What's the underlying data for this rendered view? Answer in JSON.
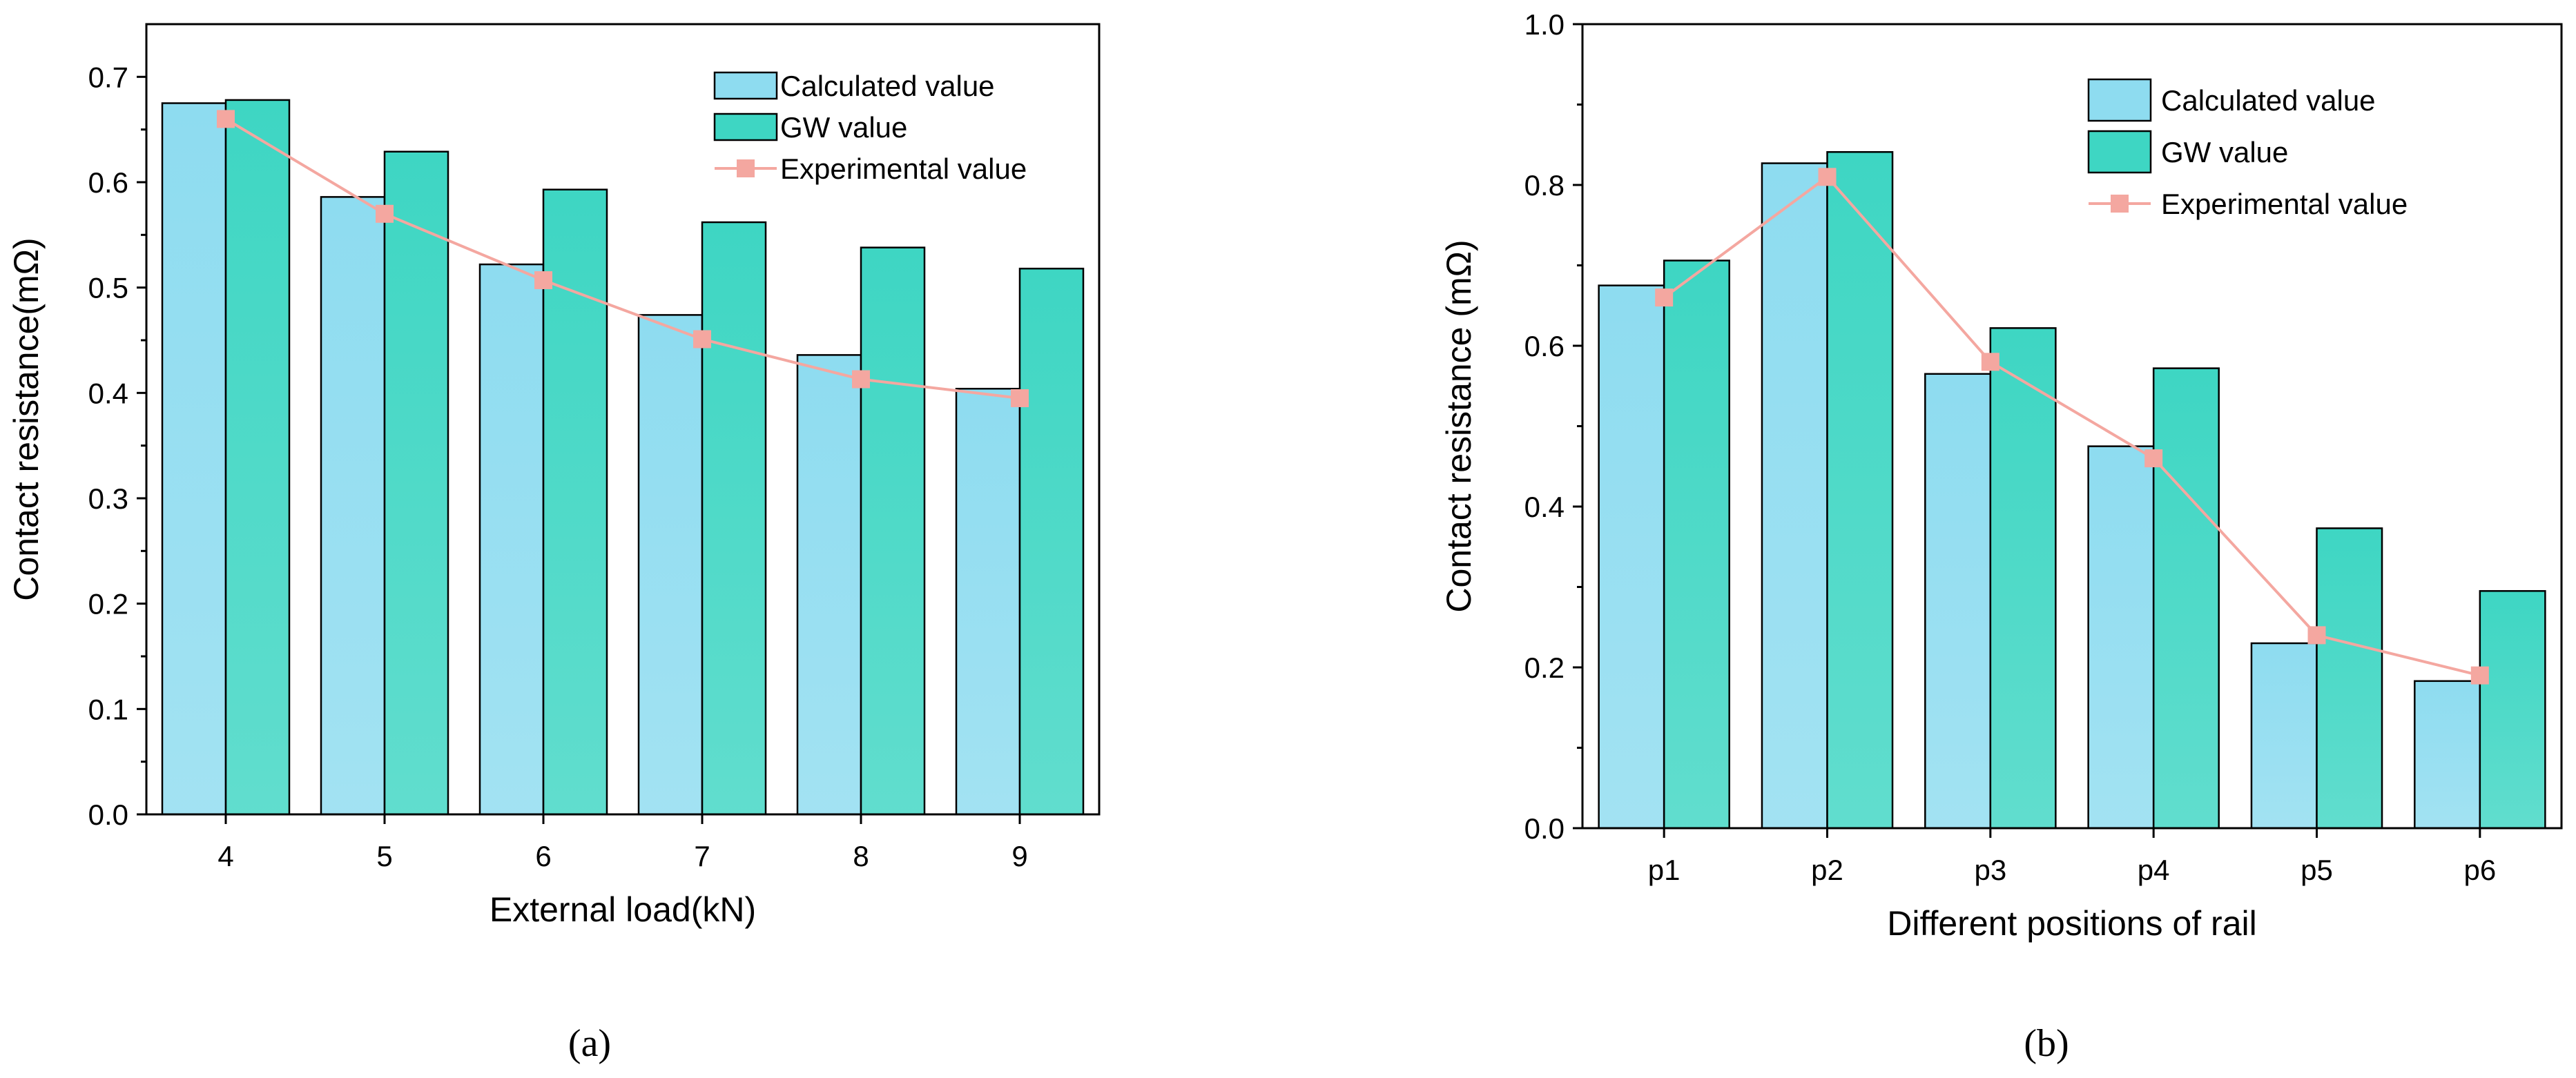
{
  "chart_data": [
    {
      "type": "bar",
      "panel": "(a)",
      "title": "",
      "xlabel": "External load(kN)",
      "ylabel": "Contact resistance(mΩ)",
      "categories": [
        "4",
        "5",
        "6",
        "7",
        "8",
        "9"
      ],
      "ylim": [
        0,
        0.75
      ],
      "yticks": [
        "0.0",
        "0.1",
        "0.2",
        "0.3",
        "0.4",
        "0.5",
        "0.6",
        "0.7"
      ],
      "yticks_values": [
        0,
        0.1,
        0.2,
        0.3,
        0.4,
        0.5,
        0.6,
        0.7
      ],
      "legend_position": "top-right",
      "series": [
        {
          "name": "Calculated value",
          "kind": "bar",
          "color": "#8edcf0",
          "values": [
            0.675,
            0.586,
            0.522,
            0.474,
            0.436,
            0.404
          ]
        },
        {
          "name": "GW value",
          "kind": "bar",
          "color": "#3ed6c3",
          "values": [
            0.678,
            0.629,
            0.593,
            0.562,
            0.538,
            0.518
          ]
        },
        {
          "name": "Experimental value",
          "kind": "line",
          "color": "#f4a7a0",
          "values": [
            0.66,
            0.57,
            0.507,
            0.451,
            0.413,
            0.395
          ]
        }
      ]
    },
    {
      "type": "bar",
      "panel": "(b)",
      "title": "",
      "xlabel": "Different positions of rail",
      "ylabel": "Contact resistance (mΩ)",
      "categories": [
        "p1",
        "p2",
        "p3",
        "p4",
        "p5",
        "p6"
      ],
      "ylim": [
        0,
        1.0
      ],
      "yticks": [
        "0.0",
        "0.2",
        "0.4",
        "0.6",
        "0.8",
        "1.0"
      ],
      "yticks_values": [
        0,
        0.2,
        0.4,
        0.6,
        0.8,
        1.0
      ],
      "legend_position": "top-right",
      "series": [
        {
          "name": "Calculated value",
          "kind": "bar",
          "color": "#8edcf0",
          "values": [
            0.675,
            0.827,
            0.565,
            0.475,
            0.23,
            0.183
          ]
        },
        {
          "name": "GW value",
          "kind": "bar",
          "color": "#3ed6c3",
          "values": [
            0.706,
            0.841,
            0.622,
            0.572,
            0.373,
            0.295
          ]
        },
        {
          "name": "Experimental value",
          "kind": "line",
          "color": "#f4a7a0",
          "values": [
            0.66,
            0.81,
            0.58,
            0.46,
            0.24,
            0.19
          ]
        }
      ]
    }
  ]
}
